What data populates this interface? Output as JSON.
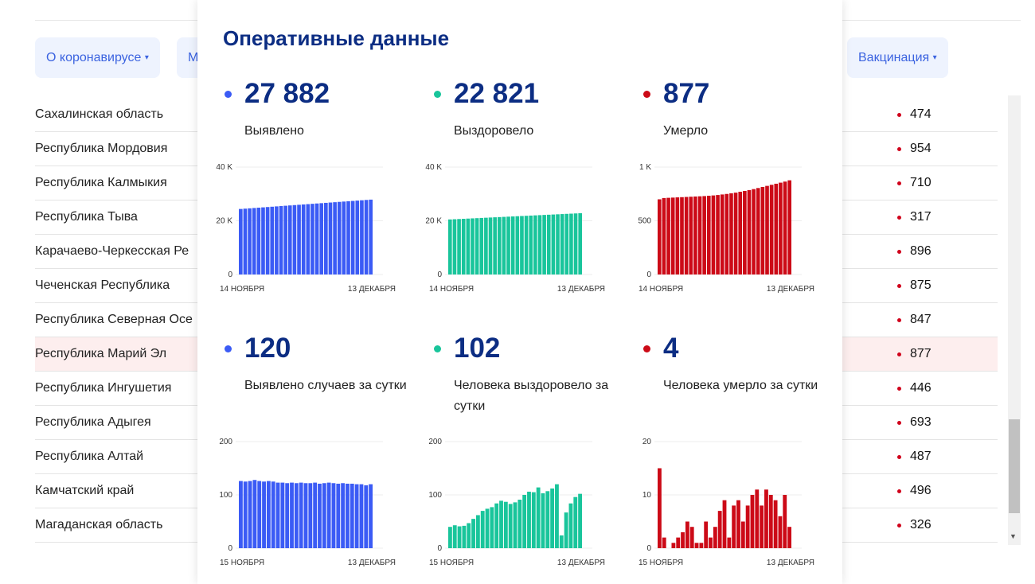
{
  "nav": {
    "left_label": "О коронавирусе",
    "partial_label": "М",
    "right_label": "Вакцинация",
    "caret": "▾"
  },
  "table": {
    "rows": [
      {
        "name": "Сахалинская область",
        "value": "474"
      },
      {
        "name": "Республика Мордовия",
        "value": "954"
      },
      {
        "name": "Республика Калмыкия",
        "value": "710"
      },
      {
        "name": "Республика Тыва",
        "value": "317"
      },
      {
        "name": "Карачаево-Черкесская Ре",
        "value": "896"
      },
      {
        "name": "Чеченская Республика",
        "value": "875"
      },
      {
        "name": "Республика Северная Осе",
        "value": "847"
      },
      {
        "name": "Республика Марий Эл",
        "value": "877",
        "highlighted": true
      },
      {
        "name": "Республика Ингушетия",
        "value": "446"
      },
      {
        "name": "Республика Адыгея",
        "value": "693"
      },
      {
        "name": "Республика Алтай",
        "value": "487"
      },
      {
        "name": "Камчатский край",
        "value": "496"
      },
      {
        "name": "Магаданская область",
        "value": "326"
      }
    ]
  },
  "modal": {
    "title": "Оперативные данные",
    "stats": [
      {
        "value": "27 882",
        "label": "Выявлено",
        "color": "#3b5bf5"
      },
      {
        "value": "22 821",
        "label": "Выздоровело",
        "color": "#19c59b"
      },
      {
        "value": "877",
        "label": "Умерло",
        "color": "#cc0a17"
      },
      {
        "value": "120",
        "label": "Выявлено случаев за сутки",
        "color": "#3b5bf5"
      },
      {
        "value": "102",
        "label": "Человека выздоровело за сутки",
        "color": "#19c59b"
      },
      {
        "value": "4",
        "label": "Человека умерло за сутки",
        "color": "#cc0a17"
      }
    ]
  },
  "chart_data": [
    {
      "type": "bar",
      "color": "#3b5bf5",
      "ylim": [
        0,
        40000
      ],
      "yticks": [
        "0",
        "20 K",
        "40 K"
      ],
      "ytick_values": [
        0,
        20000,
        40000
      ],
      "x_start": "14 НОЯБРЯ",
      "x_end": "13 ДЕКАБРЯ",
      "values": [
        24402,
        24522,
        24642,
        24762,
        24882,
        25002,
        25122,
        25242,
        25362,
        25482,
        25602,
        25722,
        25842,
        25962,
        26082,
        26202,
        26322,
        26442,
        26562,
        26682,
        26802,
        26922,
        27042,
        27162,
        27282,
        27402,
        27522,
        27642,
        27762,
        27882
      ]
    },
    {
      "type": "bar",
      "color": "#19c59b",
      "ylim": [
        0,
        40000
      ],
      "yticks": [
        "0",
        "20 K",
        "40 K"
      ],
      "ytick_values": [
        0,
        20000,
        40000
      ],
      "x_start": "14 НОЯБРЯ",
      "x_end": "13 ДЕКАБРЯ",
      "values": [
        20501,
        20581,
        20661,
        20741,
        20821,
        20901,
        20981,
        21061,
        21141,
        21221,
        21301,
        21381,
        21461,
        21541,
        21621,
        21701,
        21781,
        21861,
        21941,
        22021,
        22101,
        22181,
        22261,
        22341,
        22421,
        22501,
        22581,
        22661,
        22741,
        22821
      ]
    },
    {
      "type": "bar",
      "color": "#cc0a17",
      "ylim": [
        0,
        1000
      ],
      "yticks": [
        "0",
        "500",
        "1 K"
      ],
      "ytick_values": [
        0,
        500,
        1000
      ],
      "x_start": "14 НОЯБРЯ",
      "x_end": "13 ДЕКАБРЯ",
      "values": [
        700,
        712,
        714,
        716,
        718,
        720,
        722,
        724,
        726,
        728,
        730,
        733,
        736,
        740,
        745,
        750,
        756,
        762,
        770,
        778,
        786,
        795,
        805,
        815,
        825,
        835,
        845,
        855,
        865,
        877
      ]
    },
    {
      "type": "bar",
      "color": "#3b5bf5",
      "ylim": [
        0,
        200
      ],
      "yticks": [
        "0",
        "100",
        "200"
      ],
      "ytick_values": [
        0,
        100,
        200
      ],
      "x_start": "15 НОЯБРЯ",
      "x_end": "13 ДЕКАБРЯ",
      "values": [
        126,
        125,
        126,
        128,
        126,
        125,
        126,
        125,
        123,
        123,
        122,
        123,
        122,
        123,
        122,
        122,
        123,
        121,
        122,
        123,
        122,
        121,
        122,
        121,
        121,
        120,
        120,
        118,
        120
      ]
    },
    {
      "type": "bar",
      "color": "#19c59b",
      "ylim": [
        0,
        200
      ],
      "yticks": [
        "0",
        "100",
        "200"
      ],
      "ytick_values": [
        0,
        100,
        200
      ],
      "x_start": "15 НОЯБРЯ",
      "x_end": "13 ДЕКАБРЯ",
      "values": [
        40,
        43,
        41,
        42,
        47,
        55,
        62,
        70,
        74,
        77,
        84,
        89,
        87,
        83,
        86,
        91,
        100,
        106,
        105,
        114,
        103,
        107,
        112,
        120,
        24,
        67,
        84,
        96,
        102
      ]
    },
    {
      "type": "bar",
      "color": "#cc0a17",
      "ylim": [
        0,
        20
      ],
      "yticks": [
        "0",
        "10",
        "20"
      ],
      "ytick_values": [
        0,
        10,
        20
      ],
      "x_start": "15 НОЯБРЯ",
      "x_end": "13 ДЕКАБРЯ",
      "values": [
        15,
        2,
        0,
        1,
        2,
        3,
        5,
        4,
        1,
        1,
        5,
        2,
        4,
        7,
        9,
        2,
        8,
        9,
        5,
        8,
        10,
        11,
        8,
        11,
        10,
        9,
        6,
        10,
        4
      ]
    }
  ]
}
